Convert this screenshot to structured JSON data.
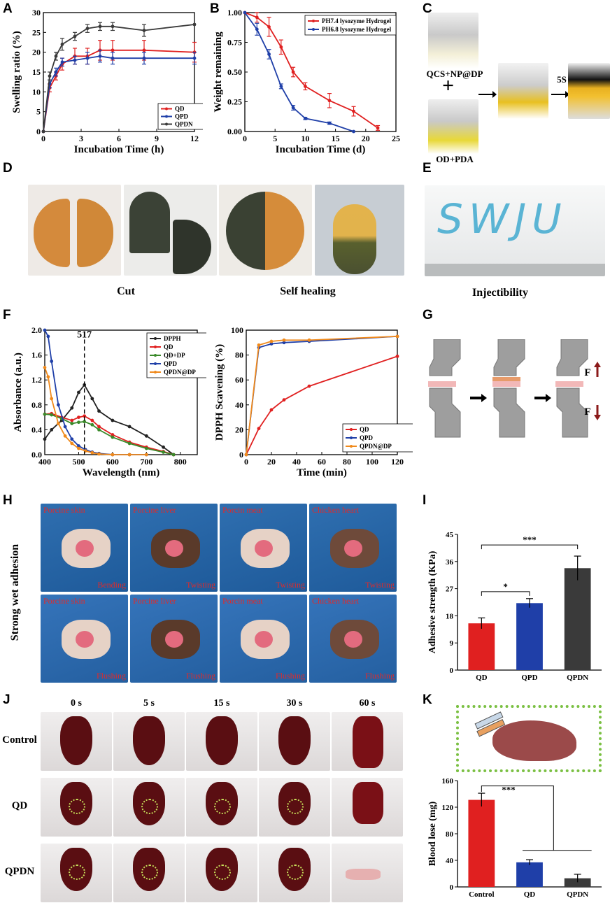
{
  "panels": {
    "A": "A",
    "B": "B",
    "C": "C",
    "D": "D",
    "E": "E",
    "F": "F",
    "G": "G",
    "H": "H",
    "I": "I",
    "J": "J",
    "K": "K"
  },
  "chart_data": [
    {
      "id": "A",
      "type": "line",
      "xlabel": "Incubation Time (h)",
      "ylabel": "Swelling ratio (%)",
      "xlim": [
        0,
        12
      ],
      "ylim": [
        0,
        30
      ],
      "xticks": [
        0,
        3,
        6,
        9,
        12
      ],
      "yticks": [
        0,
        5,
        10,
        15,
        20,
        25,
        30
      ],
      "legend_position": "bottom-right",
      "series": [
        {
          "name": "QD",
          "color": "#e02020",
          "x": [
            0,
            0.5,
            1,
            1.5,
            2.5,
            3.5,
            4.5,
            5.5,
            8,
            12
          ],
          "y": [
            0,
            11,
            14,
            17,
            19,
            19,
            20.5,
            20.5,
            20.5,
            20
          ],
          "err": [
            0,
            1,
            1,
            1.5,
            2,
            2,
            2.5,
            2.5,
            2.5,
            2.5
          ]
        },
        {
          "name": "QPD",
          "color": "#1f3fa8",
          "x": [
            0,
            0.5,
            1,
            1.5,
            2.5,
            3.5,
            4.5,
            5.5,
            8,
            12
          ],
          "y": [
            0,
            12,
            15,
            17.5,
            18,
            18.5,
            19,
            18.5,
            18.5,
            18.5
          ],
          "err": [
            0,
            1,
            1,
            1,
            1,
            1.5,
            1.5,
            1.5,
            1.5,
            1.5
          ]
        },
        {
          "name": "QPDN",
          "color": "#3a3a3a",
          "x": [
            0,
            0.5,
            1,
            1.5,
            2.5,
            3.5,
            4.5,
            5.5,
            8,
            12
          ],
          "y": [
            0,
            14,
            19,
            22,
            24,
            26,
            26.5,
            26.5,
            25.5,
            27
          ],
          "err": [
            0,
            1,
            1,
            1.5,
            1,
            1,
            1,
            1,
            1.5,
            0
          ]
        }
      ]
    },
    {
      "id": "B",
      "type": "line",
      "xlabel": "Incubation Time (d)",
      "ylabel": "Weight remaining",
      "xlim": [
        0,
        25
      ],
      "ylim": [
        0,
        1
      ],
      "xticks": [
        0,
        5,
        10,
        15,
        20,
        25
      ],
      "yticks": [
        0,
        0.25,
        0.5,
        0.75,
        1
      ],
      "ytick_labels": [
        "0.00",
        "0.25",
        "0.50",
        "0.75",
        "1.00"
      ],
      "legend_position": "top-right",
      "series": [
        {
          "name": "PH7.4 lysozyme Hydrogel",
          "color": "#e02020",
          "x": [
            0,
            2,
            4,
            6,
            8,
            10,
            14,
            18,
            22
          ],
          "y": [
            1,
            0.96,
            0.88,
            0.71,
            0.5,
            0.38,
            0.26,
            0.17,
            0.03
          ],
          "err": [
            0,
            0.04,
            0.08,
            0.06,
            0.04,
            0.03,
            0.06,
            0.04,
            0.02
          ]
        },
        {
          "name": "PH6.8 lysozyme Hydrogel",
          "color": "#1f3fa8",
          "x": [
            0,
            2,
            4,
            6,
            8,
            10,
            14,
            18
          ],
          "y": [
            1,
            0.86,
            0.65,
            0.38,
            0.2,
            0.11,
            0.07,
            0
          ],
          "err": [
            0,
            0.05,
            0.04,
            0.02,
            0.02,
            0.01,
            0.01,
            0
          ]
        }
      ]
    },
    {
      "id": "F1",
      "type": "line",
      "xlabel": "Wavelength (nm)",
      "ylabel": "Absorbance (a.u.)",
      "xlim": [
        400,
        850
      ],
      "ylim": [
        0,
        2
      ],
      "xticks": [
        400,
        500,
        600,
        700,
        800
      ],
      "yticks": [
        0,
        0.4,
        0.8,
        1.2,
        1.6,
        2.0
      ],
      "ytick_labels": [
        "0.0",
        "0.4",
        "0.8",
        "1.2",
        "1.6",
        "2.0"
      ],
      "annotation": "517",
      "legend_position": "top-right",
      "series": [
        {
          "name": "DPPH",
          "color": "#222222",
          "x": [
            400,
            420,
            450,
            480,
            500,
            517,
            540,
            560,
            600,
            650,
            700,
            750,
            780
          ],
          "y": [
            0.25,
            0.4,
            0.55,
            0.75,
            1.0,
            1.12,
            0.9,
            0.7,
            0.55,
            0.45,
            0.3,
            0.12,
            0
          ]
        },
        {
          "name": "QD",
          "color": "#e02020",
          "x": [
            400,
            420,
            450,
            480,
            500,
            517,
            540,
            560,
            600,
            650,
            700,
            750,
            780
          ],
          "y": [
            0.65,
            0.66,
            0.6,
            0.55,
            0.6,
            0.62,
            0.55,
            0.45,
            0.32,
            0.2,
            0.12,
            0.05,
            0
          ]
        },
        {
          "name": "QD+DP",
          "color": "#3a8a2a",
          "x": [
            400,
            420,
            450,
            480,
            500,
            517,
            540,
            560,
            600,
            650,
            700,
            750,
            780
          ],
          "y": [
            0.65,
            0.64,
            0.58,
            0.5,
            0.52,
            0.53,
            0.48,
            0.4,
            0.28,
            0.18,
            0.1,
            0.04,
            0
          ]
        },
        {
          "name": "QPD",
          "color": "#1f3fa8",
          "x": [
            400,
            410,
            420,
            440,
            460,
            480,
            500,
            520,
            540,
            560,
            600,
            650,
            700
          ],
          "y": [
            2.0,
            1.9,
            1.5,
            0.8,
            0.45,
            0.25,
            0.14,
            0.08,
            0.04,
            0.02,
            0,
            0,
            0
          ]
        },
        {
          "name": "QPDN@DP",
          "color": "#f08a1c",
          "x": [
            400,
            410,
            420,
            440,
            460,
            480,
            500,
            520,
            540,
            560,
            600,
            650,
            700
          ],
          "y": [
            1.4,
            1.25,
            0.9,
            0.5,
            0.3,
            0.18,
            0.1,
            0.06,
            0.03,
            0.01,
            0,
            0,
            0
          ]
        }
      ]
    },
    {
      "id": "F2",
      "type": "line",
      "xlabel": "Time (min)",
      "ylabel": "DPPH Scavening (%)",
      "xlim": [
        0,
        120
      ],
      "ylim": [
        0,
        100
      ],
      "xticks": [
        0,
        20,
        40,
        60,
        80,
        100,
        120
      ],
      "yticks": [
        0,
        20,
        40,
        60,
        80,
        100
      ],
      "legend_position": "bottom-right",
      "series": [
        {
          "name": "QD",
          "color": "#e02020",
          "x": [
            0,
            10,
            20,
            30,
            50,
            120
          ],
          "y": [
            0,
            21,
            36,
            44,
            55,
            79
          ]
        },
        {
          "name": "QPD",
          "color": "#1f3fa8",
          "x": [
            0,
            10,
            20,
            30,
            50,
            120
          ],
          "y": [
            0,
            86,
            89,
            90,
            91,
            95
          ]
        },
        {
          "name": "QPDN@DP",
          "color": "#f08a1c",
          "x": [
            0,
            10,
            20,
            30,
            50,
            120
          ],
          "y": [
            0,
            88,
            91,
            92,
            92,
            95
          ]
        }
      ]
    },
    {
      "id": "I",
      "type": "bar",
      "ylabel": "Adhesive strength (KPa)",
      "categories": [
        "QD",
        "QPD",
        "QPDN"
      ],
      "values": [
        15.5,
        22.2,
        33.8
      ],
      "err": [
        1.8,
        1.5,
        4.0
      ],
      "colors": [
        "#e02020",
        "#1f3fa8",
        "#3a3a3a"
      ],
      "ylim": [
        0,
        45
      ],
      "yticks": [
        0,
        9,
        18,
        27,
        36,
        45
      ],
      "significance": [
        "*",
        "***"
      ]
    },
    {
      "id": "K",
      "type": "bar",
      "ylabel": "Blood lose (mg)",
      "categories": [
        "Control",
        "QD",
        "QPDN"
      ],
      "values": [
        131,
        37,
        13
      ],
      "err": [
        10,
        4,
        6
      ],
      "colors": [
        "#e02020",
        "#1f3fa8",
        "#3a3a3a"
      ],
      "ylim": [
        0,
        160
      ],
      "yticks": [
        0,
        40,
        80,
        120,
        160
      ],
      "significance": [
        "***"
      ]
    }
  ],
  "panel_C": {
    "label1": "QCS+NP@DP",
    "plus": "+",
    "label2": "OD+PDA",
    "time": "5S"
  },
  "panel_D": {
    "cut": "Cut",
    "heal": "Self healing"
  },
  "panel_E": {
    "text": "SWJU",
    "caption": "Injectibility"
  },
  "panel_G": {
    "force": "F"
  },
  "panel_H": {
    "side": "Strong wet adhesion",
    "top": [
      {
        "t": "Porcine skin",
        "b": "Bending"
      },
      {
        "t": "Porcine liver",
        "b": "Twisting"
      },
      {
        "t": "Porcin meat",
        "b": "Twisting"
      },
      {
        "t": "Chicken heart",
        "b": "Twisting"
      }
    ],
    "bottom": [
      {
        "t": "Porcine skin",
        "b": "Flushing"
      },
      {
        "t": "Porcine liver",
        "b": "Flushing"
      },
      {
        "t": "Porcin meat",
        "b": "Flushing"
      },
      {
        "t": "Chicken heart",
        "b": "Flushing"
      }
    ]
  },
  "panel_J": {
    "times": [
      "0 s",
      "5 s",
      "15 s",
      "30 s",
      "60 s"
    ],
    "rows": [
      "Control",
      "QD",
      "QPDN"
    ]
  }
}
